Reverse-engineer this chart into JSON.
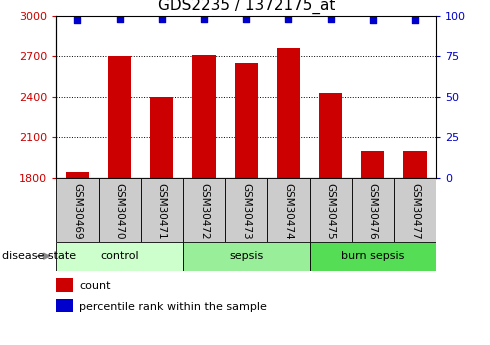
{
  "title": "GDS2235 / 1372175_at",
  "samples": [
    "GSM30469",
    "GSM30470",
    "GSM30471",
    "GSM30472",
    "GSM30473",
    "GSM30474",
    "GSM30475",
    "GSM30476",
    "GSM30477"
  ],
  "counts": [
    1840,
    2700,
    2400,
    2710,
    2650,
    2760,
    2430,
    2000,
    2000
  ],
  "percentile_ranks": [
    97,
    98,
    98,
    98,
    98,
    98,
    98,
    97,
    97
  ],
  "groups": [
    {
      "label": "control",
      "indices": [
        0,
        1,
        2
      ],
      "color": "#ccffcc"
    },
    {
      "label": "sepsis",
      "indices": [
        3,
        4,
        5
      ],
      "color": "#99ee99"
    },
    {
      "label": "burn sepsis",
      "indices": [
        6,
        7,
        8
      ],
      "color": "#55dd55"
    }
  ],
  "ylim_left": [
    1800,
    3000
  ],
  "ylim_right": [
    0,
    100
  ],
  "yticks_left": [
    1800,
    2100,
    2400,
    2700,
    3000
  ],
  "yticks_right": [
    0,
    25,
    50,
    75,
    100
  ],
  "bar_color": "#cc0000",
  "dot_color": "#0000cc",
  "left_tick_color": "#cc0000",
  "right_tick_color": "#0000cc",
  "disease_state_label": "disease state",
  "legend_count_label": "count",
  "legend_percentile_label": "percentile rank within the sample",
  "title_fontsize": 11,
  "tick_fontsize": 8,
  "label_fontsize": 7.5,
  "group_fontsize": 8,
  "legend_fontsize": 8,
  "bar_width": 0.55,
  "box_color": "#cccccc",
  "box_edge": "#888888",
  "dot_size": 18
}
